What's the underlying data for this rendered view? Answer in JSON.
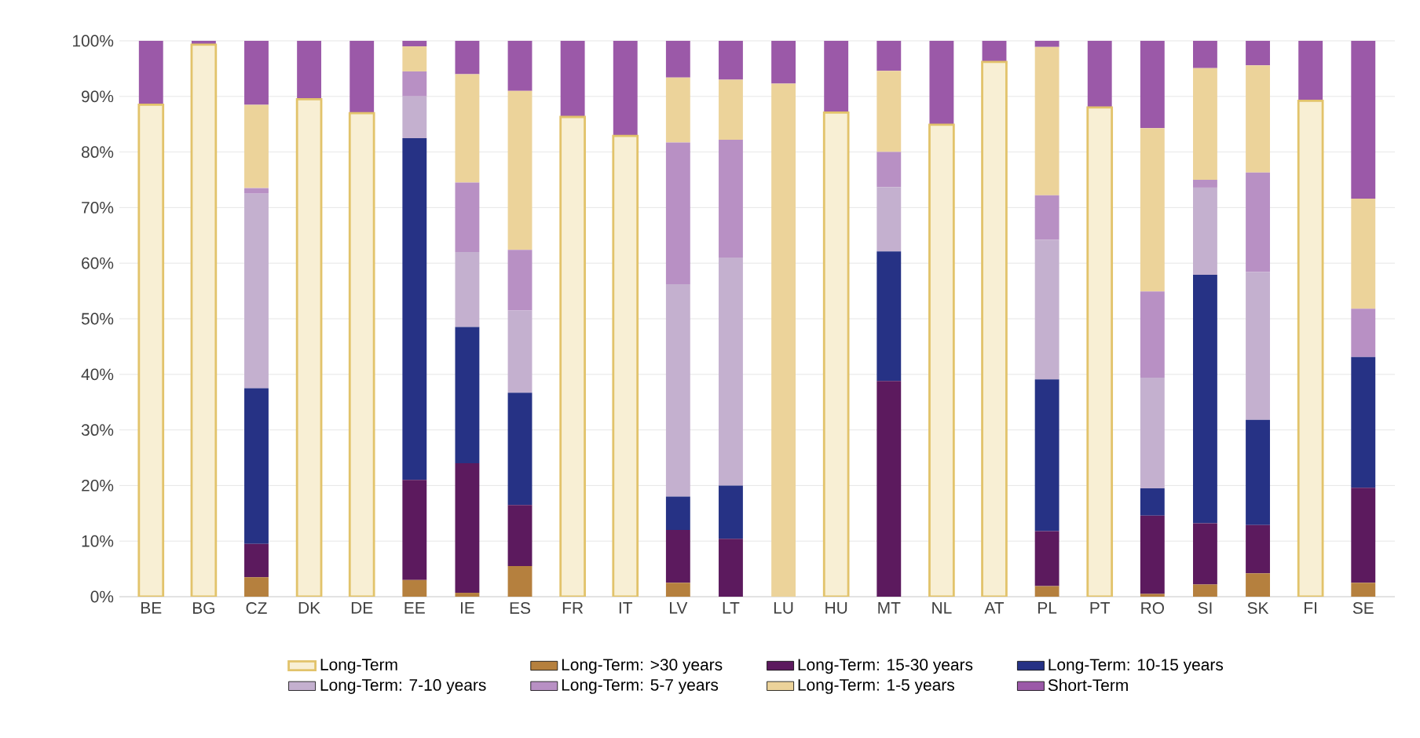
{
  "chart_data": {
    "type": "bar",
    "stacked": true,
    "categories": [
      "BE",
      "BG",
      "CZ",
      "DK",
      "DE",
      "EE",
      "IE",
      "ES",
      "FR",
      "IT",
      "LV",
      "LT",
      "LU",
      "HU",
      "MT",
      "NL",
      "AT",
      "PL",
      "PT",
      "RO",
      "SI",
      "SK",
      "FI",
      "SE"
    ],
    "ylim": [
      0,
      100
    ],
    "yticks": [
      {
        "value": 0,
        "label": "0%"
      },
      {
        "value": 10,
        "label": "10%"
      },
      {
        "value": 20,
        "label": "20%"
      },
      {
        "value": 30,
        "label": "30%"
      },
      {
        "value": 40,
        "label": "40%"
      },
      {
        "value": 50,
        "label": "50%"
      },
      {
        "value": 60,
        "label": "60%"
      },
      {
        "value": 70,
        "label": "70%"
      },
      {
        "value": 80,
        "label": "80%"
      },
      {
        "value": 90,
        "label": "90%"
      },
      {
        "value": 100,
        "label": "100%"
      }
    ],
    "grid": "y",
    "legend": "bottom",
    "series": [
      {
        "name": "Long-Term",
        "color": "#f8efd4",
        "values": [
          88.5,
          99.3,
          0,
          89.5,
          87,
          0,
          0,
          0,
          86.3,
          82.9,
          0,
          0,
          0,
          87.1,
          0,
          84.9,
          96.2,
          0,
          88,
          0,
          0,
          0,
          89.2,
          0
        ]
      },
      {
        "name": "Long-Term: >30 years",
        "color": "#b5803e",
        "values": [
          0,
          0,
          3.5,
          0,
          0,
          3,
          0.7,
          5.5,
          0,
          0,
          2.5,
          0,
          0,
          0,
          0,
          0,
          0,
          1.9,
          0,
          0.5,
          2.2,
          4.2,
          0,
          2.5
        ]
      },
      {
        "name": "Long-Term: 15-30 years",
        "color": "#5c1a5e",
        "values": [
          0,
          0,
          6,
          0,
          0,
          18,
          23.3,
          11,
          0,
          0,
          9.5,
          10.4,
          0,
          0,
          38.8,
          0,
          0,
          9.9,
          0,
          14.1,
          11,
          8.7,
          0,
          17.1
        ]
      },
      {
        "name": "Long-Term: 10-15 years",
        "color": "#263285",
        "values": [
          0,
          0,
          28,
          0,
          0,
          61.5,
          24.5,
          20.2,
          0,
          0,
          6,
          9.6,
          0,
          0,
          23.3,
          0,
          0,
          27.3,
          0,
          4.9,
          44.7,
          18.9,
          0,
          23.5
        ]
      },
      {
        "name": "Long-Term: 7-10 years",
        "color": "#c4b0cf",
        "values": [
          0,
          0,
          35,
          0,
          0,
          7.5,
          13.5,
          14.8,
          0,
          0,
          38.2,
          41,
          0,
          0,
          11.6,
          0,
          0,
          25.1,
          0,
          19.9,
          15.7,
          26.6,
          0,
          0
        ]
      },
      {
        "name": "Long-Term: 5-7 years",
        "color": "#b890c4",
        "values": [
          0,
          0,
          1,
          0,
          0,
          4.5,
          12.5,
          10.9,
          0,
          0,
          25.5,
          21.2,
          0,
          0,
          6.3,
          0,
          0,
          8,
          0,
          15.5,
          1.4,
          17.9,
          0,
          8.7
        ]
      },
      {
        "name": "Long-Term: 1-5 years",
        "color": "#ecd39a",
        "values": [
          0,
          0,
          15,
          0,
          0,
          4.5,
          19.5,
          28.6,
          0,
          0,
          11.7,
          10.8,
          92.3,
          0,
          14.6,
          0,
          0,
          26.7,
          0,
          29.4,
          20.1,
          19.3,
          0,
          19.8
        ]
      },
      {
        "name": "Short-Term",
        "color": "#9b59a8",
        "values": [
          11.5,
          0.7,
          11.5,
          10.5,
          13,
          1,
          6,
          9,
          13.7,
          17.1,
          6.6,
          7,
          7.7,
          12.9,
          5.4,
          15.1,
          3.8,
          1.1,
          12,
          15.7,
          4.9,
          4.4,
          10.8,
          28.4
        ]
      }
    ]
  }
}
